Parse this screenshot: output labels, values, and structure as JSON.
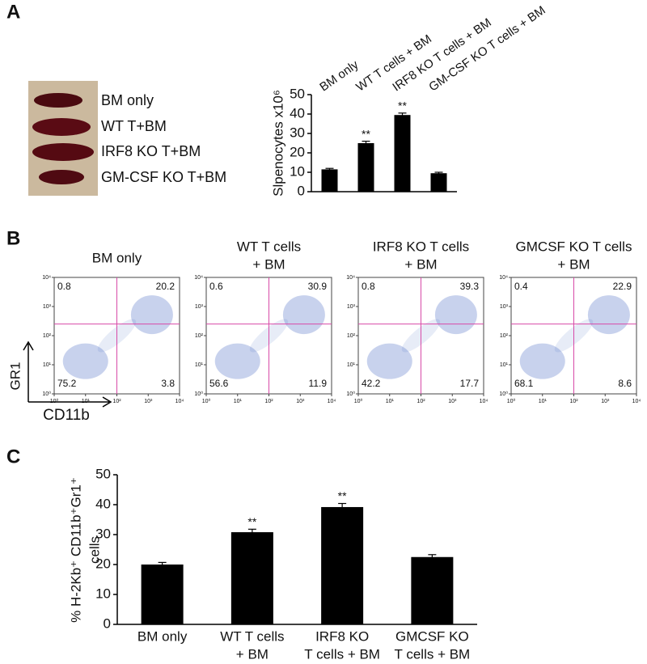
{
  "panel_labels": [
    "A",
    "B",
    "C"
  ],
  "photo_labels": [
    "BM only",
    "WT T+BM",
    "IRF8  KO T+BM",
    "GM-CSF KO T+BM"
  ],
  "chart_data": [
    {
      "type": "bar",
      "y_label": [
        "Slpenocytes x10⁶"
      ],
      "categories": [
        [
          "BM only"
        ],
        [
          "WT T cells + BM"
        ],
        [
          "IRF8 KO T cells + BM"
        ],
        [
          "GM-CSF KO T cells + BM"
        ]
      ],
      "values": [
        11.5,
        25,
        39.5,
        9.5
      ],
      "errors": [
        0.5,
        1,
        1,
        0.5
      ],
      "annotations": [
        null,
        "**",
        "**",
        null
      ],
      "color": "#000000",
      "ylim": [
        0,
        50
      ],
      "yticks": [
        0,
        10,
        20,
        30,
        40,
        50
      ]
    },
    {
      "type": "flow",
      "x_label": "CD11b",
      "y_label": "GR1",
      "log": true,
      "xlim": [
        1,
        10000
      ],
      "ylim": [
        1,
        10000
      ],
      "xticks": [
        {
          "value": 1,
          "label": "10⁰"
        },
        {
          "value": 10,
          "label": "10¹"
        },
        {
          "value": 100,
          "label": "10²"
        },
        {
          "value": 1000,
          "label": "10³"
        },
        {
          "value": 10000,
          "label": "10⁴"
        }
      ],
      "yticks": [
        {
          "value": 1,
          "label": "10⁰"
        },
        {
          "value": 10,
          "label": "10¹"
        },
        {
          "value": 100,
          "label": "10²"
        },
        {
          "value": 1000,
          "label": "10³"
        },
        {
          "value": 10000,
          "label": "10⁴"
        }
      ],
      "gate": {
        "x": 100,
        "y": 250
      },
      "gate_color": "#d84aa8",
      "dot_color": "#3a5fbf",
      "plots": [
        {
          "title": [
            "BM only"
          ],
          "quadrants": [
            0.8,
            20.2,
            75.2,
            3.8
          ]
        },
        {
          "title": [
            "WT T cells",
            "+ BM"
          ],
          "quadrants": [
            0.6,
            30.9,
            56.6,
            11.9
          ]
        },
        {
          "title": [
            "IRF8 KO T cells",
            "+ BM"
          ],
          "quadrants": [
            0.8,
            39.3,
            42.2,
            17.7
          ]
        },
        {
          "title": [
            "GMCSF KO T cells",
            "+ BM"
          ],
          "quadrants": [
            0.4,
            22.9,
            68.1,
            8.6
          ]
        }
      ]
    },
    {
      "type": "bar",
      "y_label": [
        "% H-2Kb⁺ CD11b⁺Gr1⁺",
        "cells"
      ],
      "categories": [
        [
          "BM only"
        ],
        [
          "WT T cells",
          "+ BM"
        ],
        [
          "IRF8 KO",
          "T cells + BM"
        ],
        [
          "GMCSF KO",
          "T cells + BM"
        ]
      ],
      "values": [
        20,
        30.8,
        39.2,
        22.5
      ],
      "errors": [
        0.7,
        1,
        1.2,
        0.8
      ],
      "annotations": [
        null,
        "**",
        "**",
        null
      ],
      "color": "#000000",
      "ylim": [
        0,
        50
      ],
      "yticks": [
        0,
        10,
        20,
        30,
        40,
        50
      ]
    }
  ]
}
